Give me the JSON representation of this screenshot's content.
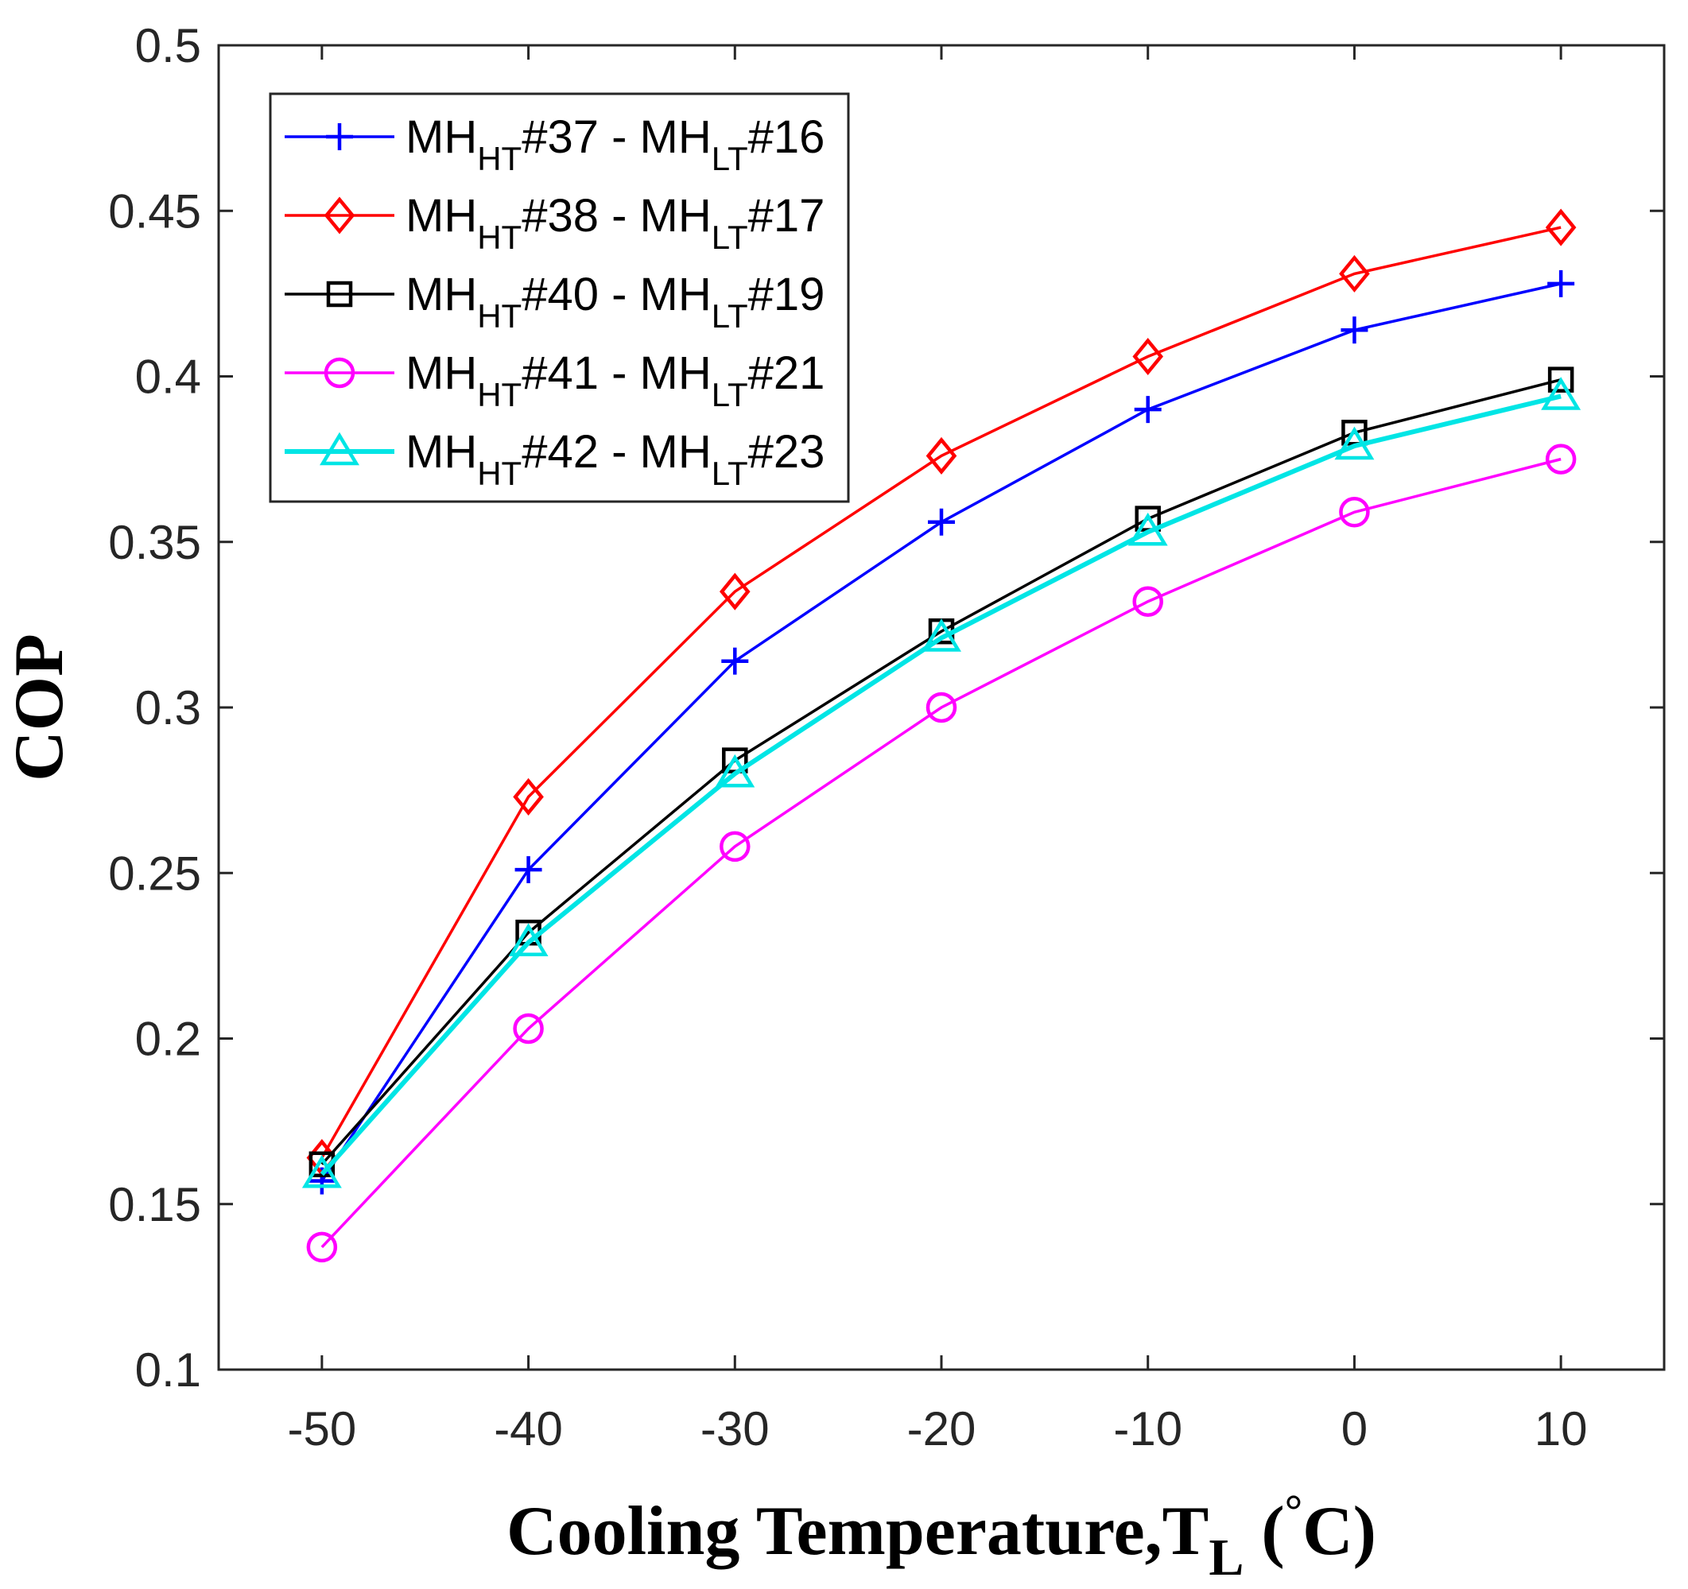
{
  "chart_data": {
    "type": "line",
    "title": "",
    "xlabel": "Cooling Temperature,T",
    "xlabel_subscript": "L",
    "xlabel_unit_open": " (",
    "xlabel_degree": "°",
    "xlabel_unit_close": "C)",
    "ylabel": "COP",
    "xlim": [
      -55,
      15
    ],
    "ylim": [
      0.1,
      0.5
    ],
    "grid": false,
    "legend_position": "top-left",
    "x": [
      -50,
      -40,
      -30,
      -20,
      -10,
      0,
      10
    ],
    "x_tick_labels": [
      "-50",
      "-40",
      "-30",
      "-20",
      "-10",
      "0",
      "10"
    ],
    "y_ticks": [
      0.1,
      0.15,
      0.2,
      0.25,
      0.3,
      0.35,
      0.4,
      0.45,
      0.5
    ],
    "y_tick_labels": [
      "0.1",
      "0.15",
      "0.2",
      "0.25",
      "0.3",
      "0.35",
      "0.4",
      "0.45",
      "0.5"
    ],
    "series": [
      {
        "name": "MH_HT#37 - MH_LT#16",
        "label_parts": [
          "MH",
          "HT",
          "#37 - MH",
          "LT",
          "#16"
        ],
        "color": "#0000ff",
        "marker": "plus",
        "values": [
          0.157,
          0.251,
          0.314,
          0.356,
          0.39,
          0.414,
          0.428
        ]
      },
      {
        "name": "MH_HT#38 - MH_LT#17",
        "label_parts": [
          "MH",
          "HT",
          "#38 - MH",
          "LT",
          "#17"
        ],
        "color": "#ff0000",
        "marker": "diamond",
        "values": [
          0.164,
          0.273,
          0.335,
          0.376,
          0.406,
          0.431,
          0.445
        ]
      },
      {
        "name": "MH_HT#40 - MH_LT#19",
        "label_parts": [
          "MH",
          "HT",
          "#40 - MH",
          "LT",
          "#19"
        ],
        "color": "#000000",
        "marker": "square",
        "values": [
          0.162,
          0.232,
          0.284,
          0.323,
          0.357,
          0.383,
          0.399
        ]
      },
      {
        "name": "MH_HT#41 - MH_LT#21",
        "label_parts": [
          "MH",
          "HT",
          "#41 - MH",
          "LT",
          "#21"
        ],
        "color": "#ff00ff",
        "marker": "circle",
        "values": [
          0.137,
          0.203,
          0.258,
          0.3,
          0.332,
          0.359,
          0.375
        ]
      },
      {
        "name": "MH_HT#42 - MH_LT#23",
        "label_parts": [
          "MH",
          "HT",
          "#42 - MH",
          "LT",
          "#23"
        ],
        "color": "#00e5e5",
        "marker": "triangle",
        "values": [
          0.159,
          0.229,
          0.28,
          0.321,
          0.353,
          0.379,
          0.394
        ]
      }
    ]
  }
}
